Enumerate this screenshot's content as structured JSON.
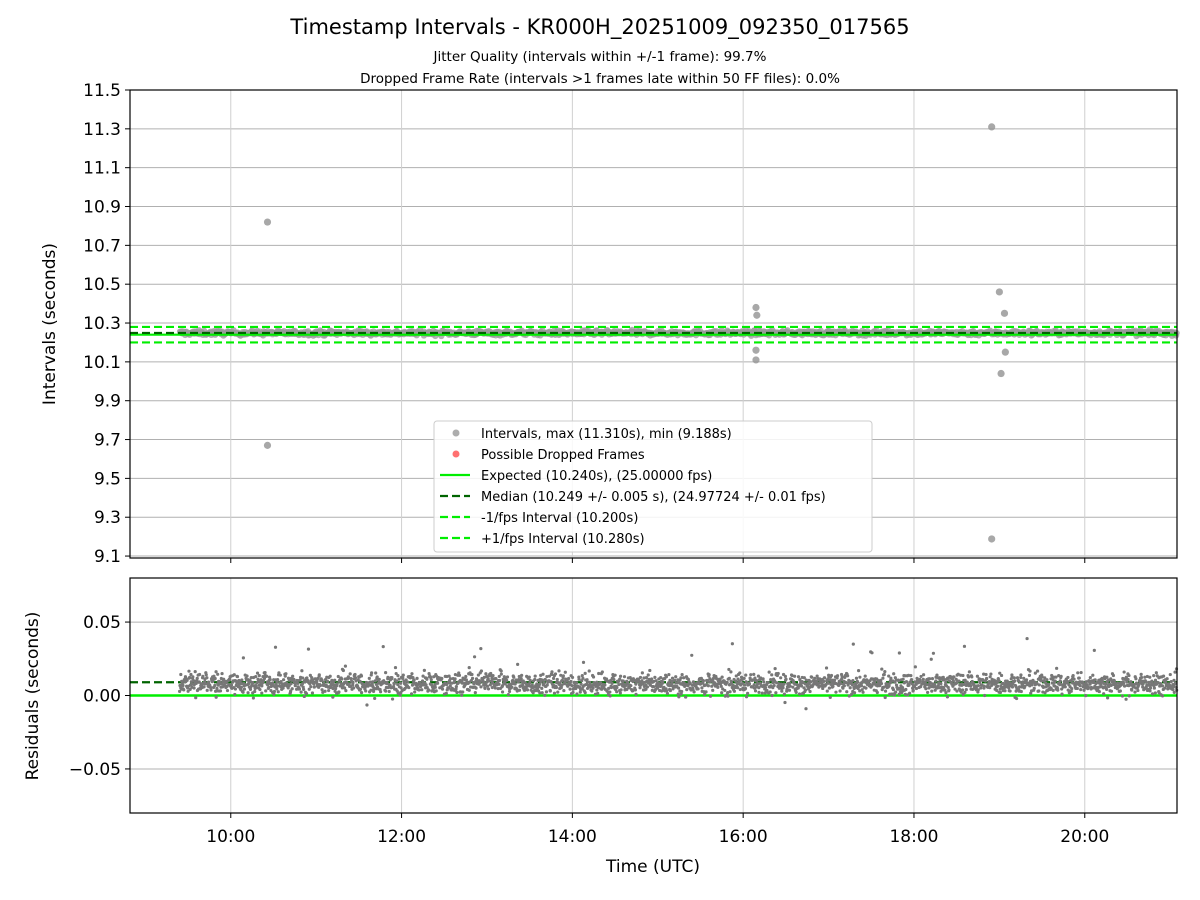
{
  "chart_data": [
    {
      "type": "scatter",
      "title": "Timestamp Intervals - KR000H_20251009_092350_017565",
      "subtitle_lines": [
        "Jitter Quality (intervals within +/-1 frame): 99.7%",
        "Dropped Frame Rate (intervals >1 frames late within 50 FF files): 0.0%"
      ],
      "xlabel": "Time (UTC)",
      "ylabel": "Intervals (seconds)",
      "xlim_hours": [
        8.82,
        21.08
      ],
      "ylim": [
        9.09,
        11.5
      ],
      "yticks": [
        9.1,
        9.3,
        9.5,
        9.7,
        9.9,
        10.1,
        10.3,
        10.5,
        10.7,
        10.9,
        11.1,
        11.3,
        11.5
      ],
      "ytick_labels": [
        "9.1",
        "9.3",
        "9.5",
        "9.7",
        "9.9",
        "10.1",
        "10.3",
        "10.5",
        "10.7",
        "10.9",
        "11.1",
        "11.3",
        "11.5"
      ],
      "xticks_hours": [
        10,
        12,
        14,
        16,
        18,
        20
      ],
      "grid": true,
      "data_range_hours": [
        9.4,
        21.08
      ],
      "intervals_color": "#999999",
      "outliers": [
        {
          "x": 10.43,
          "y": 10.82
        },
        {
          "x": 10.43,
          "y": 9.67
        },
        {
          "x": 16.15,
          "y": 10.38
        },
        {
          "x": 16.16,
          "y": 10.34
        },
        {
          "x": 16.15,
          "y": 10.16
        },
        {
          "x": 16.15,
          "y": 10.11
        },
        {
          "x": 18.91,
          "y": 11.31
        },
        {
          "x": 18.91,
          "y": 9.188
        },
        {
          "x": 19.0,
          "y": 10.46
        },
        {
          "x": 19.06,
          "y": 10.35
        },
        {
          "x": 19.07,
          "y": 10.15
        },
        {
          "x": 19.02,
          "y": 10.04
        }
      ],
      "lines": [
        {
          "name": "expected",
          "y": 10.24,
          "color": "#00ee00",
          "style": "solid"
        },
        {
          "name": "median",
          "y": 10.249,
          "color": "#006400",
          "style": "dashed"
        },
        {
          "name": "minus_fps",
          "y": 10.2,
          "color": "#00ee00",
          "style": "dashed"
        },
        {
          "name": "plus_fps",
          "y": 10.28,
          "color": "#00ee00",
          "style": "dashed"
        }
      ],
      "legend": {
        "placement": "lower-center",
        "entries": [
          {
            "label": "Intervals, max (11.310s), min (9.188s)",
            "marker": "dot",
            "color": "#999999"
          },
          {
            "label": "Possible Dropped Frames",
            "marker": "dot",
            "color": "#ff4d4d"
          },
          {
            "label": "Expected (10.240s), (25.00000 fps)",
            "marker": "solid",
            "color": "#00ee00"
          },
          {
            "label": "Median (10.249 +/- 0.005 s), (24.97724 +/- 0.01 fps)",
            "marker": "dashed",
            "color": "#006400"
          },
          {
            "label": "-1/fps Interval (10.200s)",
            "marker": "dashed",
            "color": "#00ee00"
          },
          {
            "label": "+1/fps Interval (10.280s)",
            "marker": "dashed",
            "color": "#00ee00"
          }
        ]
      }
    },
    {
      "type": "scatter",
      "xlabel": "Time (UTC)",
      "ylabel": "Residuals (seconds)",
      "xlim_hours": [
        8.82,
        21.08
      ],
      "ylim": [
        -0.08,
        0.08
      ],
      "yticks": [
        -0.05,
        0.0,
        0.05
      ],
      "ytick_labels": [
        "−0.05",
        "0.00",
        "0.05"
      ],
      "xticks_hours": [
        10,
        12,
        14,
        16,
        18,
        20
      ],
      "xtick_labels": [
        "10:00",
        "12:00",
        "14:00",
        "16:00",
        "18:00",
        "20:00"
      ],
      "grid": true,
      "points_color": "#777777",
      "zero_line": {
        "y": 0.0,
        "color": "#00ee00",
        "style": "solid"
      },
      "median_line": {
        "y": 0.009,
        "color": "#006400",
        "style": "dashed"
      },
      "residual_center": 0.008,
      "residual_spread": 0.007,
      "n_points": 2400
    }
  ]
}
